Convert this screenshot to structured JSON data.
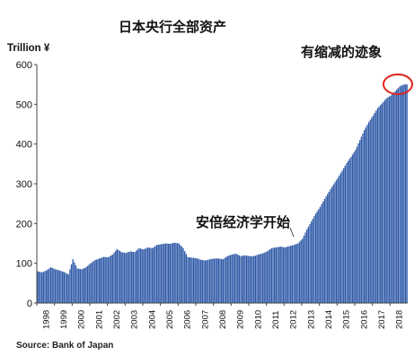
{
  "chart_data": {
    "type": "bar",
    "title": "日本央行全部资产",
    "unit_label": "Trillion ¥",
    "ylim": [
      0,
      600
    ],
    "y_ticks": [
      "0",
      "100",
      "200",
      "300",
      "400",
      "500",
      "600"
    ],
    "x_ticks": [
      "1998",
      "1999",
      "2000",
      "2001",
      "2002",
      "2003",
      "2004",
      "2005",
      "2006",
      "2007",
      "2008",
      "2009",
      "2010",
      "2011",
      "2012",
      "2013",
      "2014",
      "2015",
      "2016",
      "2017",
      "2018"
    ],
    "x_start_year": 1998,
    "series": [
      {
        "color": "#2f5aa8",
        "points": [
          [
            1998.0,
            80
          ],
          [
            1998.25,
            77
          ],
          [
            1998.5,
            82
          ],
          [
            1998.75,
            90
          ],
          [
            1999.0,
            85
          ],
          [
            1999.25,
            82
          ],
          [
            1999.5,
            78
          ],
          [
            1999.75,
            72
          ],
          [
            2000.0,
            110
          ],
          [
            2000.25,
            87
          ],
          [
            2000.5,
            85
          ],
          [
            2000.75,
            90
          ],
          [
            2001.0,
            100
          ],
          [
            2001.25,
            108
          ],
          [
            2001.5,
            112
          ],
          [
            2001.75,
            116
          ],
          [
            2002.0,
            115
          ],
          [
            2002.25,
            122
          ],
          [
            2002.5,
            136
          ],
          [
            2002.75,
            128
          ],
          [
            2003.0,
            126
          ],
          [
            2003.25,
            130
          ],
          [
            2003.5,
            128
          ],
          [
            2003.75,
            138
          ],
          [
            2004.0,
            135
          ],
          [
            2004.25,
            140
          ],
          [
            2004.5,
            138
          ],
          [
            2004.75,
            146
          ],
          [
            2005.0,
            148
          ],
          [
            2005.25,
            150
          ],
          [
            2005.5,
            149
          ],
          [
            2005.75,
            152
          ],
          [
            2006.0,
            150
          ],
          [
            2006.25,
            138
          ],
          [
            2006.5,
            116
          ],
          [
            2006.75,
            114
          ],
          [
            2007.0,
            113
          ],
          [
            2007.25,
            109
          ],
          [
            2007.5,
            107
          ],
          [
            2007.75,
            110
          ],
          [
            2008.0,
            112
          ],
          [
            2008.25,
            112
          ],
          [
            2008.5,
            110
          ],
          [
            2008.75,
            118
          ],
          [
            2009.0,
            122
          ],
          [
            2009.25,
            124
          ],
          [
            2009.5,
            118
          ],
          [
            2009.75,
            120
          ],
          [
            2010.0,
            118
          ],
          [
            2010.25,
            118
          ],
          [
            2010.5,
            122
          ],
          [
            2010.75,
            125
          ],
          [
            2011.0,
            130
          ],
          [
            2011.25,
            138
          ],
          [
            2011.5,
            140
          ],
          [
            2011.75,
            142
          ],
          [
            2012.0,
            140
          ],
          [
            2012.25,
            143
          ],
          [
            2012.5,
            146
          ],
          [
            2012.75,
            150
          ],
          [
            2013.0,
            162
          ],
          [
            2013.25,
            185
          ],
          [
            2013.5,
            205
          ],
          [
            2013.75,
            225
          ],
          [
            2014.0,
            242
          ],
          [
            2014.25,
            262
          ],
          [
            2014.5,
            280
          ],
          [
            2014.75,
            298
          ],
          [
            2015.0,
            315
          ],
          [
            2015.25,
            333
          ],
          [
            2015.5,
            352
          ],
          [
            2015.75,
            368
          ],
          [
            2016.0,
            385
          ],
          [
            2016.25,
            410
          ],
          [
            2016.5,
            435
          ],
          [
            2016.75,
            455
          ],
          [
            2017.0,
            472
          ],
          [
            2017.25,
            490
          ],
          [
            2017.5,
            502
          ],
          [
            2017.75,
            515
          ],
          [
            2018.0,
            522
          ],
          [
            2018.25,
            533
          ],
          [
            2018.5,
            545
          ],
          [
            2018.75,
            550
          ]
        ]
      }
    ],
    "annotations": {
      "abenomics": "安倍经济学开始",
      "tapering": "有缩减的迹象"
    },
    "source": "Source: Bank of Japan",
    "grid": false
  },
  "colors": {
    "bar": "#2f5aa8",
    "highlight_circle": "#e0221b",
    "axis": "#444444"
  }
}
